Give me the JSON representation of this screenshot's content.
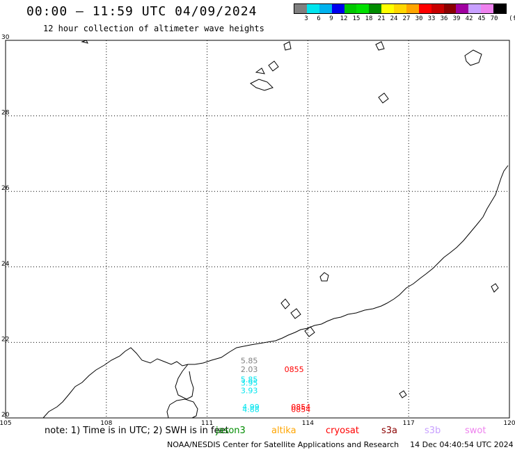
{
  "header": {
    "title": "00:00 – 11:59 UTC 04/09/2024",
    "subtitle": "12 hour collection of altimeter wave heights"
  },
  "legend": {
    "unit": "(ft)",
    "ticks": [
      "3",
      "6",
      "9",
      "12",
      "15",
      "18",
      "21",
      "24",
      "27",
      "30",
      "33",
      "36",
      "39",
      "42",
      "45",
      "70"
    ],
    "colors": [
      "#808080",
      "#00e5ee",
      "#00b2ee",
      "#0000ee",
      "#00c800",
      "#00e000",
      "#008c00",
      "#ffff00",
      "#ffd700",
      "#ffa500",
      "#ff0000",
      "#c80000",
      "#8b0000",
      "#a000a0",
      "#c8a0ff",
      "#ee82ee",
      "#000000"
    ]
  },
  "map": {
    "lat_ticks": [
      "20",
      "22",
      "24",
      "26",
      "28",
      "30"
    ],
    "lon_ticks": [
      "105",
      "108",
      "111",
      "114",
      "117",
      "120"
    ],
    "observations": [
      {
        "text": "5.85",
        "color": "#808080",
        "lon": 112.0,
        "lat": 21.45
      },
      {
        "text": "2.03",
        "color": "#808080",
        "lon": 112.0,
        "lat": 21.22
      },
      {
        "text": "0855",
        "color": "#ff0000",
        "lon": 113.3,
        "lat": 21.22
      },
      {
        "text": "5.85",
        "color": "#00e5ee",
        "lon": 112.0,
        "lat": 20.95
      },
      {
        "text": "3.95",
        "color": "#00e5ee",
        "lon": 112.0,
        "lat": 20.86
      },
      {
        "text": "3.93",
        "color": "#00e5ee",
        "lon": 112.0,
        "lat": 20.65
      },
      {
        "text": "4.99",
        "color": "#00e5ee",
        "lon": 112.05,
        "lat": 20.22
      },
      {
        "text": "4.88",
        "color": "#00e5ee",
        "lon": 112.05,
        "lat": 20.16
      },
      {
        "text": "0854",
        "color": "#ff0000",
        "lon": 113.5,
        "lat": 20.22
      },
      {
        "text": "0854",
        "color": "#ff0000",
        "lon": 113.5,
        "lat": 20.16
      }
    ]
  },
  "footer": {
    "note": "note: 1) Time is in UTC; 2) SWH is in feet",
    "satellites": [
      {
        "name": "jason3",
        "color": "#008c00"
      },
      {
        "name": "altika",
        "color": "#ffa500"
      },
      {
        "name": "cryosat",
        "color": "#ff0000"
      },
      {
        "name": "s3a",
        "color": "#8b0000"
      },
      {
        "name": "s3b",
        "color": "#c8a0ff"
      },
      {
        "name": "swot",
        "color": "#ee82ee"
      }
    ],
    "credit": "NOAA/NESDIS Center for Satellite Applications and Research",
    "timestamp": "14 Dec 04:40:54 UTC 2024"
  }
}
